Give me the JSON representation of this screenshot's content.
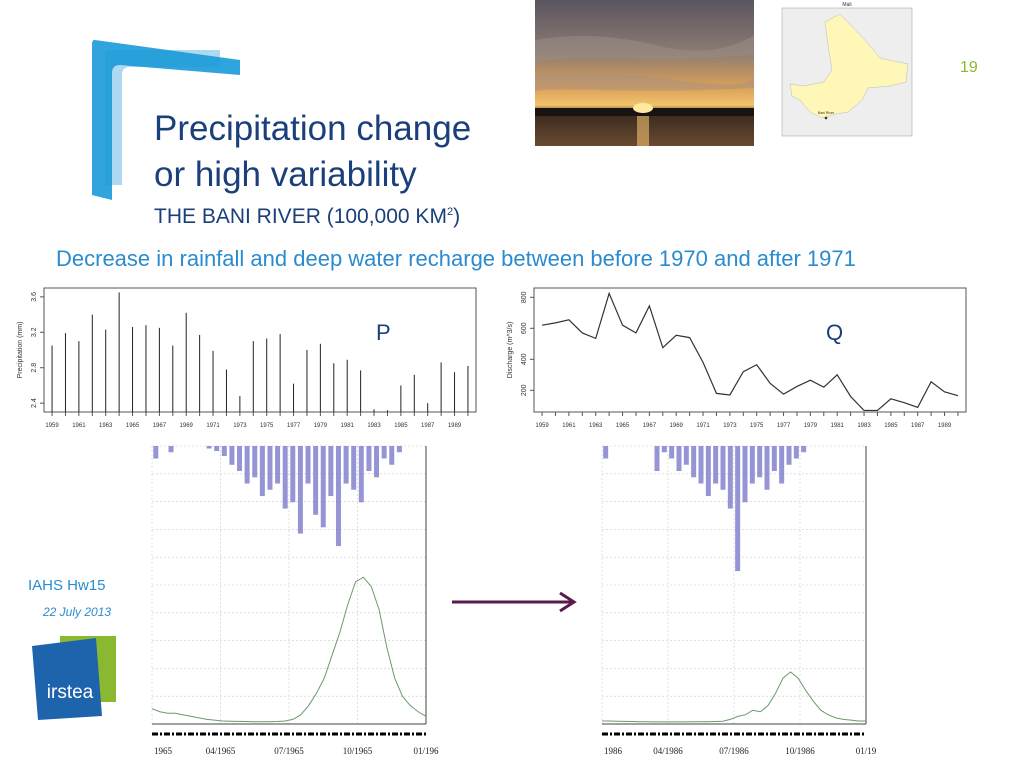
{
  "slide": {
    "title_line1": "Precipitation change",
    "title_line2": "or high variability",
    "subtitle": "THE BANI RIVER (100,000 KM",
    "subtitle_sup": "2",
    "subtitle_close": ")",
    "lead": "Decrease in rainfall and deep water recharge between before 1970 and after 1971",
    "page_number": "19",
    "conference": "IAHS Hw15",
    "date": "22 July 2013",
    "logo_text": "irstea"
  },
  "colors": {
    "title": "#1a3f7a",
    "accent": "#2a8bd0",
    "green": "#8ab830",
    "arrow": "#5a1a4a",
    "hydro_flow": "#6a9a6a",
    "hydro_rain": "#7a7acc"
  },
  "map": {
    "title": "Mali",
    "label": "Bani River"
  },
  "chart_data": [
    {
      "type": "bar",
      "panel_label": "P",
      "ylabel": "Precipitation (mm)",
      "ylim": [
        2.3,
        3.7
      ],
      "yticks": [
        "2.4",
        "2.8",
        "3.2",
        "3.6"
      ],
      "xticks": [
        "1959",
        "1961",
        "1963",
        "1965",
        "1967",
        "1969",
        "1971",
        "1973",
        "1975",
        "1977",
        "1979",
        "1981",
        "1983",
        "1985",
        "1987",
        "1989"
      ],
      "x": [
        1959,
        1960,
        1961,
        1962,
        1963,
        1964,
        1965,
        1966,
        1967,
        1968,
        1969,
        1970,
        1971,
        1972,
        1973,
        1974,
        1975,
        1976,
        1977,
        1978,
        1979,
        1980,
        1981,
        1982,
        1983,
        1984,
        1985,
        1986,
        1987,
        1988,
        1989,
        1990
      ],
      "values": [
        3.05,
        3.19,
        3.1,
        3.4,
        3.23,
        3.65,
        3.26,
        3.28,
        3.25,
        3.05,
        3.42,
        3.17,
        2.99,
        2.78,
        2.48,
        3.1,
        3.13,
        3.18,
        2.62,
        3.0,
        3.07,
        2.85,
        2.89,
        2.77,
        2.33,
        2.32,
        2.6,
        2.72,
        2.4,
        2.86,
        2.75,
        2.82
      ]
    },
    {
      "type": "line",
      "panel_label": "Q",
      "ylabel": "Discharge (m^3/s)",
      "ylim": [
        60,
        860
      ],
      "yticks": [
        "200",
        "400",
        "600",
        "800"
      ],
      "xticks": [
        "1959",
        "1961",
        "1963",
        "1965",
        "1967",
        "1969",
        "1971",
        "1973",
        "1975",
        "1977",
        "1979",
        "1981",
        "1983",
        "1985",
        "1987",
        "1989"
      ],
      "x": [
        1959,
        1960,
        1961,
        1962,
        1963,
        1964,
        1965,
        1966,
        1967,
        1968,
        1969,
        1970,
        1971,
        1972,
        1973,
        1974,
        1975,
        1976,
        1977,
        1978,
        1979,
        1980,
        1981,
        1982,
        1983,
        1984,
        1985,
        1986,
        1987,
        1988,
        1989,
        1990
      ],
      "values": [
        620,
        635,
        655,
        570,
        535,
        825,
        620,
        570,
        745,
        475,
        555,
        540,
        380,
        180,
        170,
        320,
        365,
        245,
        175,
        225,
        265,
        220,
        300,
        160,
        70,
        70,
        145,
        120,
        90,
        255,
        190,
        165
      ]
    },
    {
      "type": "line",
      "description_hint": "hydrograph 1965",
      "xticks": [
        "1965",
        "04/1965",
        "07/1965",
        "10/1965",
        "01/196"
      ],
      "flow": [
        0.1,
        0.08,
        0.07,
        0.07,
        0.06,
        0.05,
        0.04,
        0.03,
        0.025,
        0.02,
        0.018,
        0.017,
        0.016,
        0.015,
        0.015,
        0.015,
        0.016,
        0.02,
        0.03,
        0.06,
        0.12,
        0.2,
        0.3,
        0.45,
        0.6,
        0.78,
        0.93,
        0.96,
        0.9,
        0.75,
        0.5,
        0.3,
        0.18,
        0.12,
        0.08,
        0.05
      ],
      "rain": [
        0.1,
        0.0,
        0.05,
        0.0,
        0.0,
        0.0,
        0.0,
        0.02,
        0.04,
        0.08,
        0.15,
        0.2,
        0.3,
        0.25,
        0.4,
        0.35,
        0.3,
        0.5,
        0.45,
        0.7,
        0.3,
        0.55,
        0.65,
        0.4,
        0.8,
        0.3,
        0.35,
        0.45,
        0.2,
        0.25,
        0.1,
        0.15,
        0.05,
        0.0,
        0.0,
        0.0
      ]
    },
    {
      "type": "line",
      "description_hint": "hydrograph 1986",
      "xticks": [
        "1986",
        "04/1986",
        "07/1986",
        "10/1986",
        "01/19"
      ],
      "flow": [
        0.02,
        0.02,
        0.018,
        0.017,
        0.016,
        0.015,
        0.015,
        0.014,
        0.014,
        0.014,
        0.014,
        0.014,
        0.015,
        0.015,
        0.015,
        0.016,
        0.018,
        0.03,
        0.05,
        0.06,
        0.09,
        0.08,
        0.12,
        0.2,
        0.3,
        0.34,
        0.3,
        0.22,
        0.15,
        0.09,
        0.06,
        0.04,
        0.03,
        0.025,
        0.02,
        0.02
      ],
      "rain": [
        0.1,
        0.0,
        0.0,
        0.0,
        0.0,
        0.0,
        0.0,
        0.2,
        0.05,
        0.1,
        0.2,
        0.15,
        0.25,
        0.3,
        0.4,
        0.3,
        0.35,
        0.5,
        1.0,
        0.45,
        0.3,
        0.25,
        0.35,
        0.2,
        0.3,
        0.15,
        0.1,
        0.05,
        0.0,
        0.0,
        0.0,
        0.0,
        0.0,
        0.0,
        0.0,
        0.0
      ]
    }
  ]
}
